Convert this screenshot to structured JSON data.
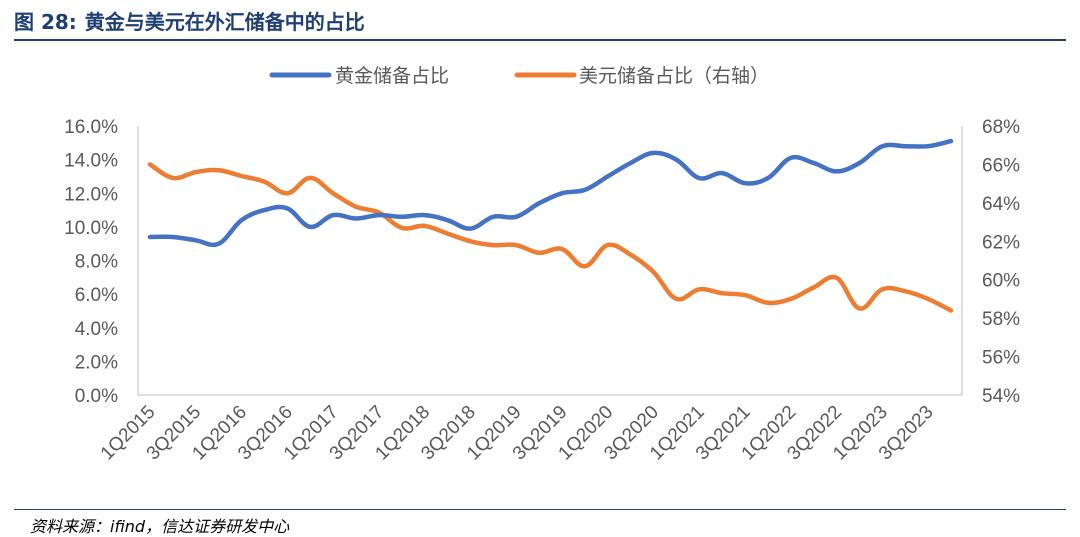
{
  "figure": {
    "number": "图 28:",
    "title": "黄金与美元在外汇储备中的占比"
  },
  "source": "资料来源：ifind，信达证券研发中心",
  "colors": {
    "gold": "#4472C4",
    "usd": "#ED7D31",
    "axis": "#BFBFBF",
    "tick": "#595959"
  },
  "chart_data": {
    "type": "line",
    "title": "黄金与美元在外汇储备中的占比",
    "legend_position": "top",
    "x": [
      "1Q2015",
      "2Q2015",
      "3Q2015",
      "4Q2015",
      "1Q2016",
      "2Q2016",
      "3Q2016",
      "4Q2016",
      "1Q2017",
      "2Q2017",
      "3Q2017",
      "4Q2017",
      "1Q2018",
      "2Q2018",
      "3Q2018",
      "4Q2018",
      "1Q2019",
      "2Q2019",
      "3Q2019",
      "4Q2019",
      "1Q2020",
      "2Q2020",
      "3Q2020",
      "4Q2020",
      "1Q2021",
      "2Q2021",
      "3Q2021",
      "4Q2021",
      "1Q2022",
      "2Q2022",
      "3Q2022",
      "4Q2022",
      "1Q2023",
      "2Q2023",
      "3Q2023",
      "4Q2023"
    ],
    "x_tick_labels": [
      "1Q2015",
      "3Q2015",
      "1Q2016",
      "3Q2016",
      "1Q2017",
      "3Q2017",
      "1Q2018",
      "3Q2018",
      "1Q2019",
      "3Q2019",
      "1Q2020",
      "3Q2020",
      "1Q2021",
      "3Q2021",
      "1Q2022",
      "3Q2022",
      "1Q2023",
      "3Q2023"
    ],
    "left_axis": {
      "ylim": [
        0,
        16
      ],
      "tick_labels": [
        "0.0%",
        "2.0%",
        "4.0%",
        "6.0%",
        "8.0%",
        "10.0%",
        "12.0%",
        "14.0%",
        "16.0%"
      ]
    },
    "right_axis": {
      "ylim": [
        54,
        68
      ],
      "tick_labels": [
        "54%",
        "56%",
        "58%",
        "60%",
        "62%",
        "64%",
        "66%",
        "68%"
      ]
    },
    "series": [
      {
        "name": "黄金储备占比",
        "axis": "left",
        "values": [
          9.4,
          9.4,
          9.2,
          9.0,
          10.4,
          11.0,
          11.1,
          10.0,
          10.7,
          10.5,
          10.7,
          10.6,
          10.7,
          10.4,
          9.9,
          10.6,
          10.6,
          11.4,
          12.0,
          12.2,
          13.0,
          13.8,
          14.4,
          14.0,
          12.9,
          13.2,
          12.6,
          12.9,
          14.1,
          13.8,
          13.3,
          13.8,
          14.8,
          14.8,
          14.8,
          15.1
        ]
      },
      {
        "name": "美元储备占比（右轴）",
        "axis": "right",
        "values": [
          66.0,
          65.3,
          65.6,
          65.7,
          65.4,
          65.1,
          64.5,
          65.3,
          64.5,
          63.8,
          63.5,
          62.7,
          62.8,
          62.4,
          62.0,
          61.8,
          61.8,
          61.4,
          61.6,
          60.7,
          61.8,
          61.3,
          60.4,
          59.0,
          59.5,
          59.3,
          59.2,
          58.8,
          59.0,
          59.6,
          60.1,
          58.5,
          59.5,
          59.4,
          59.0,
          58.4
        ]
      }
    ]
  }
}
